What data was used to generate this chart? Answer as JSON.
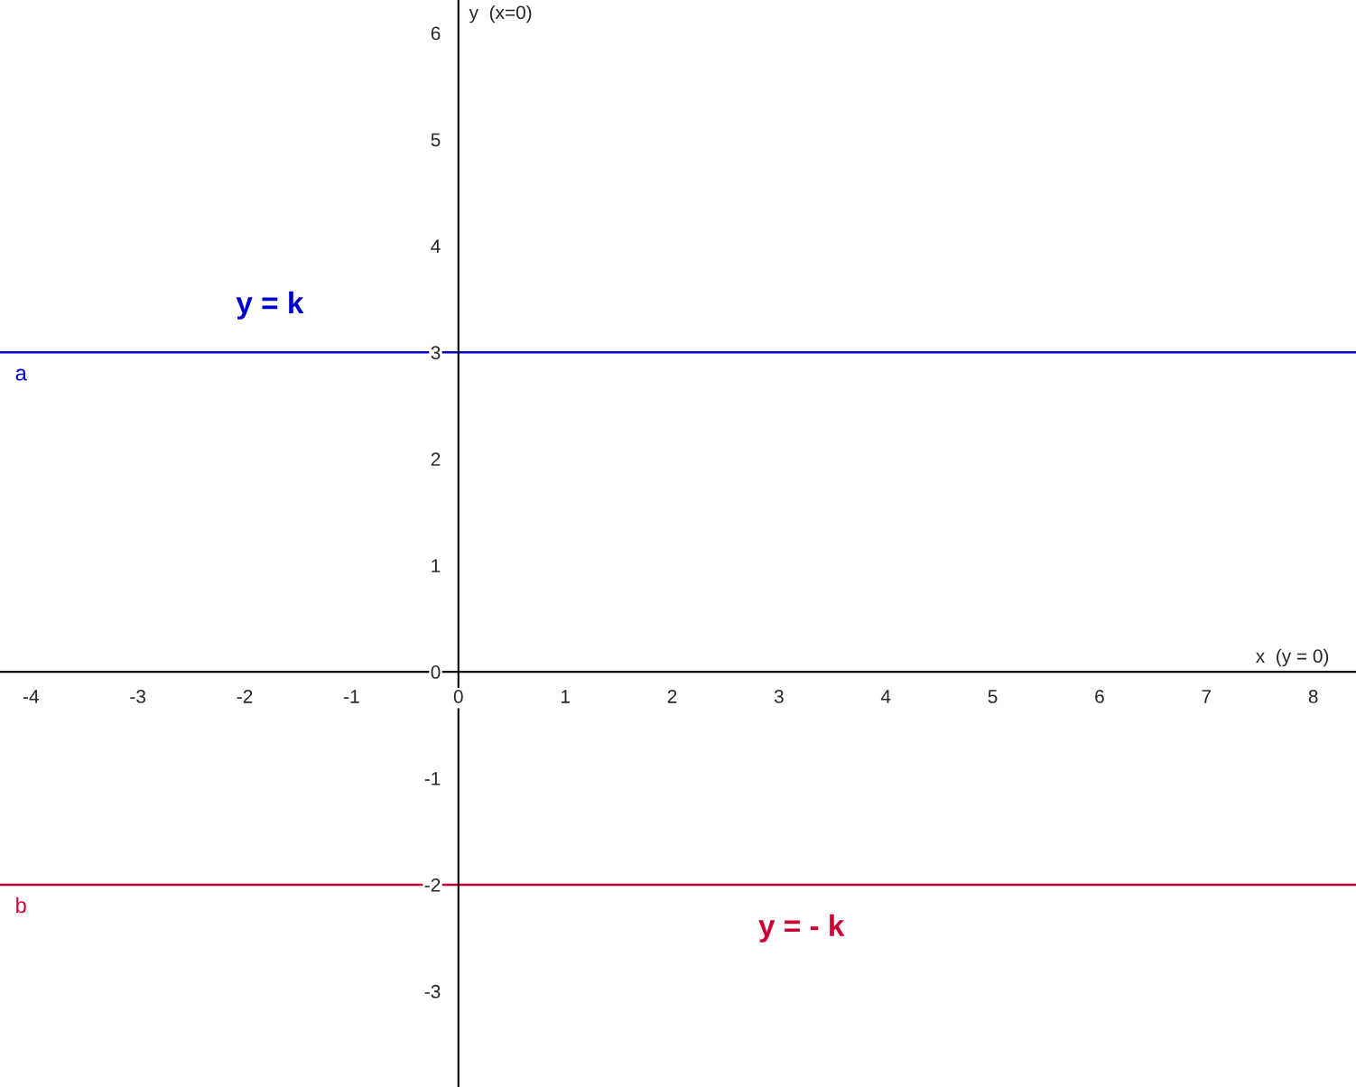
{
  "chart_data": {
    "type": "line",
    "xlabel": "x  (y = 0)",
    "ylabel": "y  (x=0)",
    "xlim": [
      -4.29,
      8.4
    ],
    "ylim": [
      -3.9,
      6.31
    ],
    "xticks": [
      -4,
      -3,
      -2,
      -1,
      0,
      1,
      2,
      3,
      4,
      5,
      6,
      7,
      8
    ],
    "yticks": [
      -3,
      -2,
      -1,
      0,
      1,
      2,
      3,
      4,
      5,
      6
    ],
    "ref_lines": [
      {
        "axis": "y",
        "value": 3,
        "label": "a",
        "color": "#0000cc",
        "line_style": "solid"
      },
      {
        "axis": "y",
        "value": -2,
        "label": "b",
        "color": "#cc0033",
        "line_style": "solid"
      }
    ],
    "annotations": [
      "y = k",
      "y = - k"
    ],
    "grid": false,
    "legend": false
  }
}
